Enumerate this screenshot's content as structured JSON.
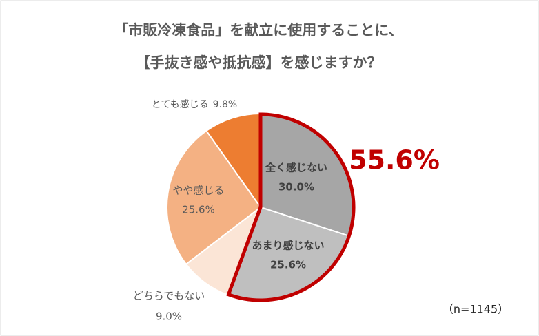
{
  "chart_data": {
    "type": "pie",
    "title": [
      "「市販冷凍食品」を献立に使用することに、",
      "【手抜き感や抵抗感】を感じますか？"
    ],
    "categories": [
      "全く感じない",
      "あまり感じない",
      "どちらでもない",
      "やや感じる",
      "とても感じる"
    ],
    "values": [
      30.0,
      25.6,
      9.0,
      25.6,
      9.8
    ],
    "value_labels": [
      "30.0%",
      "25.6%",
      "9.0%",
      "25.6%",
      "9.8%"
    ],
    "colors": [
      "#a6a6a6",
      "#bfbfbf",
      "#fbe5d6",
      "#f4b183",
      "#ed7d31"
    ],
    "annotation": "55.6%",
    "highlight_color": "#c00000",
    "note": "（n=1145）"
  }
}
